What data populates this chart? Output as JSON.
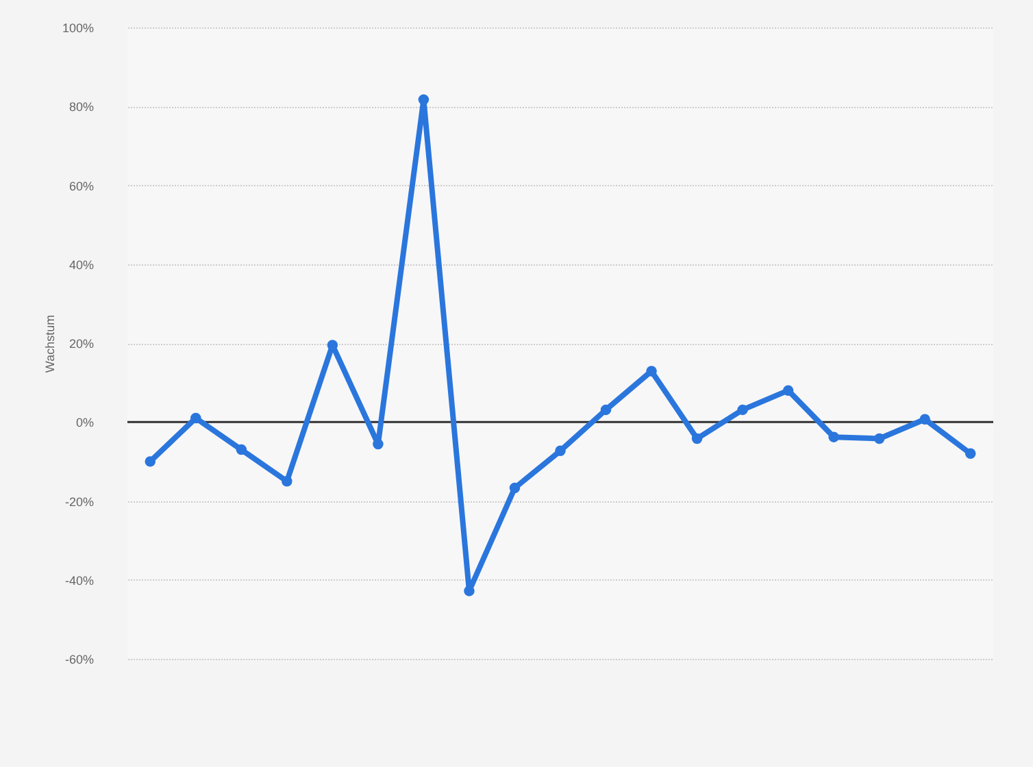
{
  "chart_data": {
    "type": "line",
    "ylabel": "Wachstum",
    "categories": [
      null,
      null,
      null,
      null,
      null,
      null,
      null,
      null,
      null,
      null,
      null,
      null,
      null,
      null,
      null,
      null,
      null,
      null,
      null
    ],
    "series": [
      {
        "color": "#2a76dd",
        "values": [
          -10,
          1,
          -7,
          -15,
          19.5,
          -5.6,
          81.7,
          -42.8,
          -16.7,
          -7.3,
          3.1,
          12.9,
          -4.2,
          3.1,
          8,
          -3.8,
          -4.2,
          0.7,
          -8
        ]
      }
    ],
    "ylim": [
      -60,
      100
    ],
    "yticks": [
      {
        "value": -60,
        "label": "-60%"
      },
      {
        "value": -40,
        "label": "-40%"
      },
      {
        "value": -20,
        "label": "-20%"
      },
      {
        "value": 0,
        "label": "0%"
      },
      {
        "value": 20,
        "label": "20%"
      },
      {
        "value": 40,
        "label": "40%"
      },
      {
        "value": 60,
        "label": "60%"
      },
      {
        "value": 80,
        "label": "80%"
      },
      {
        "value": 100,
        "label": "100%"
      }
    ],
    "ref_lines": [
      {
        "axis": "y",
        "value": 0,
        "color": "#333333"
      }
    ],
    "grid": "y",
    "marker": "circle",
    "line_style": "solid",
    "tick_labels": "y"
  }
}
